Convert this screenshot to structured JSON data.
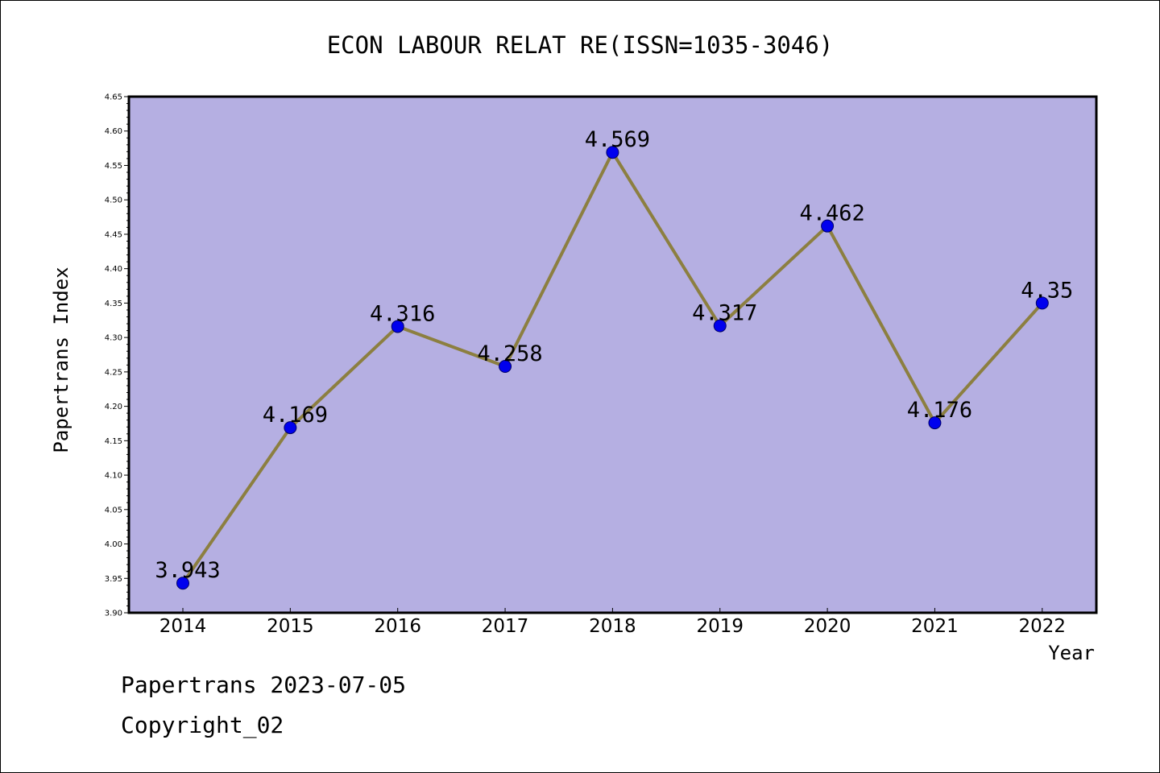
{
  "footer": {
    "line1": "Papertrans 2023-07-05",
    "line2": "Copyright_02"
  },
  "colors": {
    "plot_background": "#b5afe2",
    "line": "#8c7f40",
    "marker": "#0000ee",
    "marker_edge": "#000066"
  },
  "chart_data": {
    "type": "line",
    "title": "ECON LABOUR RELAT RE(ISSN=1035-3046)",
    "xlabel": "Year",
    "ylabel": "Papertrans Index",
    "categories": [
      "2014",
      "2015",
      "2016",
      "2017",
      "2018",
      "2019",
      "2020",
      "2021",
      "2022"
    ],
    "values": [
      3.943,
      4.169,
      4.316,
      4.258,
      4.569,
      4.317,
      4.462,
      4.176,
      4.35
    ],
    "data_labels": [
      "3.943",
      "4.169",
      "4.316",
      "4.258",
      "4.569",
      "4.317",
      "4.462",
      "4.176",
      "4.35"
    ],
    "ylim": [
      3.9,
      4.65
    ],
    "yticks": [
      "3.90",
      "3.95",
      "4.00",
      "4.05",
      "4.10",
      "4.15",
      "4.20",
      "4.25",
      "4.30",
      "4.35",
      "4.40",
      "4.45",
      "4.50",
      "4.55",
      "4.60",
      "4.65"
    ],
    "grid": false,
    "legend": "none"
  }
}
